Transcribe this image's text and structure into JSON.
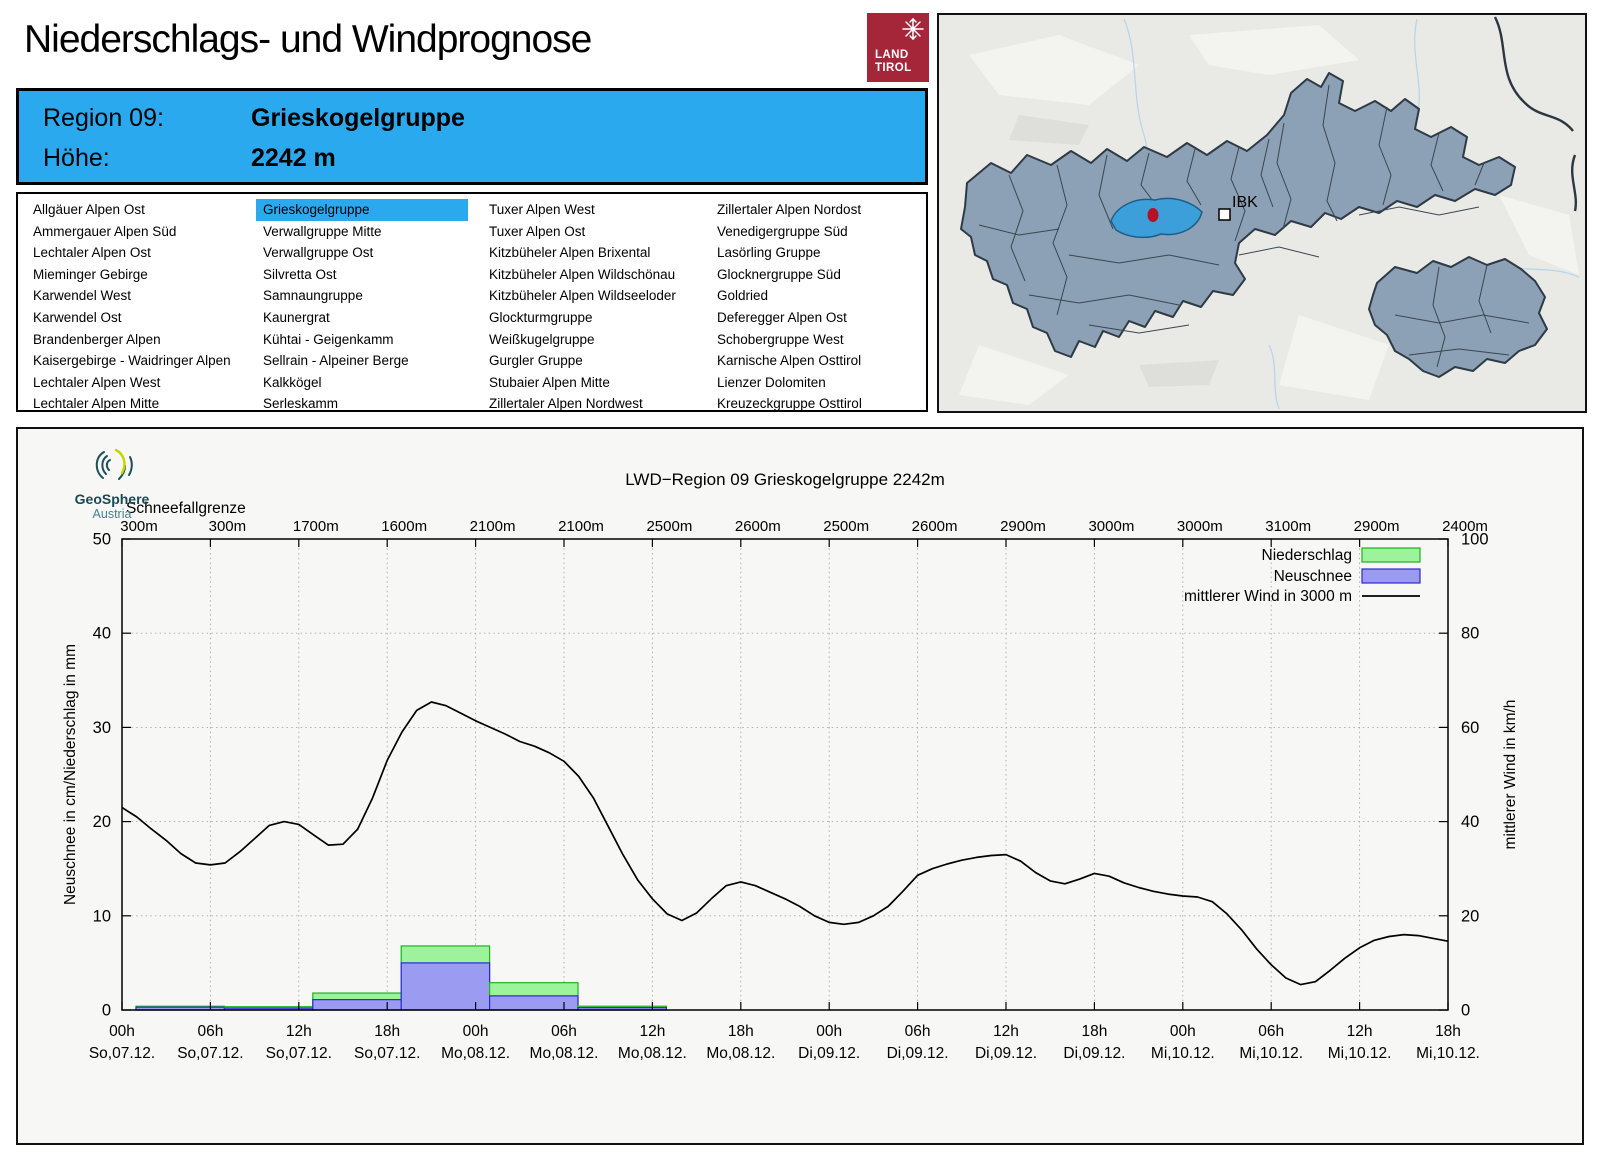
{
  "page": {
    "title": "Niederschlags- und Windprognose"
  },
  "logo_land_tirol": {
    "line1": "LAND",
    "line2": "TIROL",
    "color": "#a62639"
  },
  "logo_geosphere": {
    "name": "GeoSphere",
    "sub": "Austria"
  },
  "region_header": {
    "label_region": "Region 09:",
    "value_region": "Grieskogelgruppe",
    "label_altitude": "Höhe:",
    "value_altitude": "2242 m",
    "accent_color": "#2aa9ef"
  },
  "region_list": {
    "selected": "Grieskogelgruppe",
    "columns": [
      [
        "Allgäuer Alpen Ost",
        "Ammergauer Alpen Süd",
        "Lechtaler Alpen Ost",
        "Mieminger Gebirge",
        "Karwendel West",
        "Karwendel Ost",
        "Brandenberger Alpen",
        "Kaisergebirge - Waidringer Alpen",
        "Lechtaler Alpen West",
        "Lechtaler Alpen Mitte"
      ],
      [
        "Grieskogelgruppe",
        "Verwallgruppe Mitte",
        "Verwallgruppe Ost",
        "Silvretta Ost",
        "Samnaungruppe",
        "Kaunergrat",
        "Kühtai - Geigenkamm",
        "Sellrain - Alpeiner Berge",
        "Kalkkögel",
        "Serleskamm"
      ],
      [
        "Tuxer Alpen West",
        "Tuxer Alpen Ost",
        "Kitzbüheler Alpen Brixental",
        "Kitzbüheler Alpen Wildschönau",
        "Kitzbüheler Alpen Wildseeloder",
        "Glockturmgruppe",
        "Weißkugelgruppe",
        "Gurgler Gruppe",
        "Stubaier Alpen Mitte",
        "Zillertaler Alpen Nordwest"
      ],
      [
        "Zillertaler Alpen Nordost",
        "Venedigergruppe Süd",
        "Lasörling Gruppe",
        "Glocknergruppe Süd",
        "Goldried",
        "Deferegger Alpen Ost",
        "Schobergruppe West",
        "Karnische Alpen Osttirol",
        "Lienzer Dolomiten",
        "Kreuzeckgruppe Osttirol"
      ]
    ]
  },
  "map": {
    "city_label": "IBK",
    "region_fill": "#8ca1b5",
    "highlight_color": "#3d9fd9",
    "marker_color": "#b51225"
  },
  "chart_data": {
    "type": "mixed-bar-line",
    "title": "LWD−Region 09 Grieskogelgruppe 2242m",
    "snowline_label": "Schneefallgrenze",
    "snowline_values": [
      "300m",
      "300m",
      "1700m",
      "1600m",
      "2100m",
      "2100m",
      "2500m",
      "2600m",
      "2500m",
      "2600m",
      "2900m",
      "3000m",
      "3000m",
      "3100m",
      "2900m",
      "2400m"
    ],
    "x_hour_labels": [
      "00h",
      "06h",
      "12h",
      "18h",
      "00h",
      "06h",
      "12h",
      "18h",
      "00h",
      "06h",
      "12h",
      "18h",
      "00h",
      "06h",
      "12h",
      "18h"
    ],
    "x_date_labels": [
      "So,07.12.",
      "So,07.12.",
      "So,07.12.",
      "So,07.12.",
      "Mo,08.12.",
      "Mo,08.12.",
      "Mo,08.12.",
      "Mo,08.12.",
      "Di,09.12.",
      "Di,09.12.",
      "Di,09.12.",
      "Di,09.12.",
      "Mi,10.12.",
      "Mi,10.12.",
      "Mi,10.12.",
      "Mi,10.12."
    ],
    "y_left": {
      "label": "Neuschnee in cm/Niederschlag in mm",
      "min": 0,
      "max": 50,
      "ticks": [
        0,
        10,
        20,
        30,
        40,
        50
      ]
    },
    "y_right": {
      "label": "mittlerer Wind in km/h",
      "min": 0,
      "max": 100,
      "ticks": [
        0,
        20,
        40,
        60,
        80,
        100
      ]
    },
    "legend": [
      {
        "label": "Niederschlag",
        "kind": "box",
        "fill": "#9cf39b",
        "stroke": "#1db31d"
      },
      {
        "label": "Neuschnee",
        "kind": "box",
        "fill": "#9b9bf1",
        "stroke": "#2a2ad2"
      },
      {
        "label": "mittlerer Wind in 3000 m",
        "kind": "line",
        "stroke": "#000000"
      }
    ],
    "grid_color": "#a8a8a8",
    "bars": {
      "interval_hours": 6,
      "niederschlag_mm": [
        0.4,
        0.35,
        1.8,
        6.8,
        2.9,
        0.4,
        0,
        0,
        0,
        0,
        0,
        0,
        0,
        0,
        0
      ],
      "neuschnee_cm": [
        0.3,
        0.2,
        1.1,
        5.0,
        1.5,
        0.25,
        0,
        0,
        0,
        0,
        0,
        0,
        0,
        0,
        0
      ]
    },
    "wind_kmh": [
      [
        0,
        43
      ],
      [
        1,
        41
      ],
      [
        2,
        38.4
      ],
      [
        3,
        36
      ],
      [
        4,
        33.2
      ],
      [
        5,
        31.2
      ],
      [
        6,
        30.8
      ],
      [
        7,
        31.2
      ],
      [
        8,
        33.6
      ],
      [
        9,
        36.4
      ],
      [
        10,
        39.2
      ],
      [
        11,
        40
      ],
      [
        12,
        39.4
      ],
      [
        13,
        37.2
      ],
      [
        14,
        35
      ],
      [
        15,
        35.2
      ],
      [
        16,
        38.4
      ],
      [
        17,
        45
      ],
      [
        18,
        53
      ],
      [
        19,
        59
      ],
      [
        20,
        63.6
      ],
      [
        21,
        65.4
      ],
      [
        22,
        64.6
      ],
      [
        23,
        63
      ],
      [
        24,
        61.4
      ],
      [
        25,
        60
      ],
      [
        26,
        58.6
      ],
      [
        27,
        57
      ],
      [
        28,
        56
      ],
      [
        29,
        54.6
      ],
      [
        30,
        52.8
      ],
      [
        31,
        49.6
      ],
      [
        32,
        45
      ],
      [
        33,
        39
      ],
      [
        34,
        33
      ],
      [
        35,
        27.6
      ],
      [
        36,
        23.6
      ],
      [
        37,
        20.4
      ],
      [
        38,
        19
      ],
      [
        39,
        20.6
      ],
      [
        40,
        23.6
      ],
      [
        41,
        26.4
      ],
      [
        42,
        27.2
      ],
      [
        43,
        26.4
      ],
      [
        44,
        25
      ],
      [
        45,
        23.6
      ],
      [
        46,
        22
      ],
      [
        47,
        20
      ],
      [
        48,
        18.6
      ],
      [
        49,
        18.2
      ],
      [
        50,
        18.6
      ],
      [
        51,
        20
      ],
      [
        52,
        22
      ],
      [
        53,
        25.2
      ],
      [
        54,
        28.6
      ],
      [
        55,
        30
      ],
      [
        56,
        31
      ],
      [
        57,
        31.8
      ],
      [
        58,
        32.4
      ],
      [
        59,
        32.8
      ],
      [
        60,
        33
      ],
      [
        61,
        31.6
      ],
      [
        62,
        29.2
      ],
      [
        63,
        27.4
      ],
      [
        64,
        26.8
      ],
      [
        65,
        27.8
      ],
      [
        66,
        29
      ],
      [
        67,
        28.4
      ],
      [
        68,
        27
      ],
      [
        69,
        26
      ],
      [
        70,
        25.2
      ],
      [
        71,
        24.6
      ],
      [
        72,
        24.2
      ],
      [
        73,
        24
      ],
      [
        74,
        23
      ],
      [
        75,
        20.4
      ],
      [
        76,
        17
      ],
      [
        77,
        13
      ],
      [
        78,
        9.6
      ],
      [
        79,
        6.8
      ],
      [
        80,
        5.4
      ],
      [
        81,
        6
      ],
      [
        82,
        8.4
      ],
      [
        83,
        11
      ],
      [
        84,
        13.2
      ],
      [
        85,
        14.8
      ],
      [
        86,
        15.6
      ],
      [
        87,
        16
      ],
      [
        88,
        15.8
      ],
      [
        89,
        15.2
      ],
      [
        90,
        14.6
      ]
    ]
  }
}
